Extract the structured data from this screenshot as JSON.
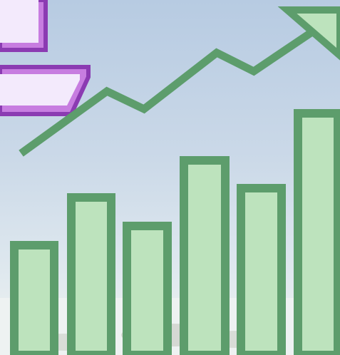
{
  "illustration": {
    "subject": "growth-bar-chart-with-rising-trend-arrow",
    "icons": [
      "bar-chart-icon",
      "trend-up-arrow-icon",
      "purple-frame-icon"
    ],
    "colors": {
      "bar_fill": "#bde3bd",
      "bar_stroke": "#5d9d6c",
      "trend": "#5d9d6c",
      "frame_fill": "#c77de0",
      "frame_stroke": "#8b3bb2",
      "background_top": "#b7cbe2",
      "background_bottom": "#f2f3ee"
    },
    "bars": {
      "count": 6,
      "relative_heights": [
        0.4,
        0.56,
        0.46,
        0.68,
        0.59,
        0.88
      ]
    },
    "trend_direction": "up"
  }
}
